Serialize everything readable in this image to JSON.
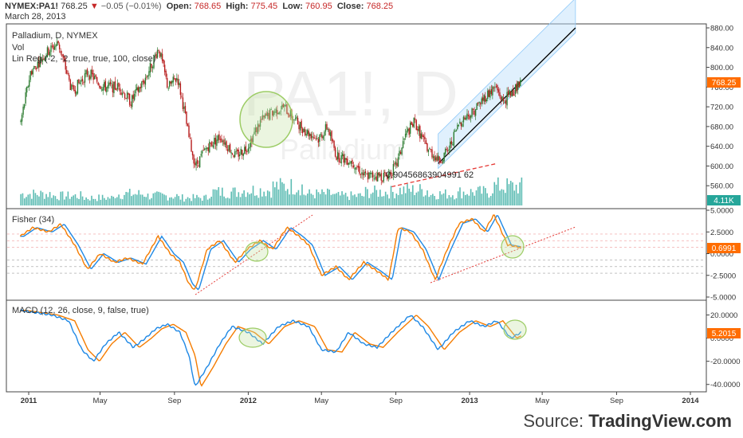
{
  "header": {
    "symbol": "NYMEX:PA1!",
    "last": "768.25",
    "change": "−0.05 (−0.01%)",
    "open_label": "Open:",
    "open": "768.65",
    "high_label": "High:",
    "high": "775.45",
    "low_label": "Low:",
    "low": "760.95",
    "close_label": "Close:",
    "close": "768.25",
    "date": "March 28, 2013"
  },
  "main_pane": {
    "title": "Palladium, D, NYMEX",
    "vol_label": "Vol",
    "linreg_label": "Lin Reg (-2, -2, true, true, 100, close)",
    "watermark_symbol": "PA1!, D",
    "watermark_name": "Palladium",
    "annotation": "0.90456863904991 62",
    "last_price_badge": "768.25",
    "volume_badge": "4.11K"
  },
  "fisher_pane": {
    "title": "Fisher (34)",
    "value_badge": "0.6991"
  },
  "macd_pane": {
    "title": "MACD (12, 26, close, 9, false, true)",
    "value_badge": "5.2015"
  },
  "source": {
    "prefix": "Source:",
    "brand": "TradingView.com"
  },
  "colors": {
    "up": "#2e7d32",
    "down": "#b71c1c",
    "volume": "#26a69a",
    "fisher": "#f57c00",
    "fisher_signal": "#1e88e5",
    "macd": "#1e88e5",
    "macd_signal": "#f57c00",
    "trendline_red": "#e53935",
    "channel": "#bbdefb",
    "badge": "#ff6d00"
  },
  "chart_data": [
    {
      "type": "candlestick",
      "title": "Palladium, D, NYMEX",
      "ylim": [
        520,
        880
      ],
      "y_ticks": [
        "560.00",
        "600.00",
        "640.00",
        "680.00",
        "720.00",
        "760.00",
        "800.00",
        "840.00",
        "880.00"
      ],
      "x_ticks": [
        "2011",
        "May",
        "Sep",
        "2012",
        "May",
        "Sep",
        "2013",
        "May",
        "Sep",
        "2014"
      ],
      "x_dates": [
        "2011-01-03",
        "2011-05-01",
        "2011-09-01",
        "2012-01-01",
        "2012-05-01",
        "2012-09-01",
        "2013-01-01",
        "2013-05-01",
        "2013-09-01",
        "2014-01-01"
      ],
      "price_path": [
        [
          "2010-12-20",
          690
        ],
        [
          "2011-01-05",
          790
        ],
        [
          "2011-02-01",
          830
        ],
        [
          "2011-02-20",
          850
        ],
        [
          "2011-03-15",
          750
        ],
        [
          "2011-04-10",
          790
        ],
        [
          "2011-05-05",
          760
        ],
        [
          "2011-06-01",
          760
        ],
        [
          "2011-06-20",
          730
        ],
        [
          "2011-07-15",
          780
        ],
        [
          "2011-08-05",
          840
        ],
        [
          "2011-08-20",
          760
        ],
        [
          "2011-09-05",
          780
        ],
        [
          "2011-09-15",
          720
        ],
        [
          "2011-09-25",
          650
        ],
        [
          "2011-10-05",
          600
        ],
        [
          "2011-10-25",
          640
        ],
        [
          "2011-11-15",
          660
        ],
        [
          "2011-12-10",
          620
        ],
        [
          "2011-12-30",
          640
        ],
        [
          "2012-01-20",
          690
        ],
        [
          "2012-02-10",
          710
        ],
        [
          "2012-02-28",
          720
        ],
        [
          "2012-03-20",
          690
        ],
        [
          "2012-04-05",
          670
        ],
        [
          "2012-04-25",
          655
        ],
        [
          "2012-05-10",
          680
        ],
        [
          "2012-05-25",
          620
        ],
        [
          "2012-06-20",
          610
        ],
        [
          "2012-07-10",
          580
        ],
        [
          "2012-07-30",
          580
        ],
        [
          "2012-08-15",
          580
        ],
        [
          "2012-09-01",
          600
        ],
        [
          "2012-09-15",
          660
        ],
        [
          "2012-10-01",
          690
        ],
        [
          "2012-10-20",
          640
        ],
        [
          "2012-11-10",
          610
        ],
        [
          "2012-11-25",
          630
        ],
        [
          "2012-12-15",
          690
        ],
        [
          "2013-01-05",
          710
        ],
        [
          "2013-01-25",
          740
        ],
        [
          "2013-02-12",
          760
        ],
        [
          "2013-02-25",
          730
        ],
        [
          "2013-03-10",
          750
        ],
        [
          "2013-03-28",
          768.25
        ]
      ],
      "volume": {
        "last_label": "4.11K",
        "approx_share_of_pane": [
          0.3,
          0.25,
          0.2,
          0.3,
          0.25,
          0.2,
          0.35,
          0.4,
          0.5,
          0.3,
          0.25,
          0.35,
          0.4,
          0.3,
          0.35,
          0.5
        ]
      },
      "lin_reg_channel": {
        "start": [
          "2012-11-10",
          605
        ],
        "end": [
          "2013-06-25",
          880
        ],
        "upper_offset": 60,
        "lower_offset": 10
      },
      "annotation_line": {
        "start": [
          "2012-08-25",
          558
        ],
        "end": [
          "2013-02-15",
          605
        ],
        "label": "0.90456863904991 62"
      },
      "last_price": 768.25
    },
    {
      "type": "line",
      "title": "Fisher (34)",
      "ylim": [
        -5.0,
        5.0
      ],
      "y_ticks": [
        "5.0000",
        "2.5000",
        "0.0000",
        "-2.5000",
        "-5.0000"
      ],
      "last_value": 0.6991,
      "series_points": [
        [
          "2010-12-20",
          2.0
        ],
        [
          "2011-01-10",
          3.0
        ],
        [
          "2011-02-05",
          2.5
        ],
        [
          "2011-02-25",
          3.4
        ],
        [
          "2011-03-20",
          1.0
        ],
        [
          "2011-04-10",
          -1.8
        ],
        [
          "2011-05-01",
          0.0
        ],
        [
          "2011-05-25",
          -1.0
        ],
        [
          "2011-06-15",
          -0.5
        ],
        [
          "2011-07-10",
          -1.2
        ],
        [
          "2011-08-05",
          2.0
        ],
        [
          "2011-08-25",
          0.0
        ],
        [
          "2011-09-10",
          -1.0
        ],
        [
          "2011-09-25",
          -3.5
        ],
        [
          "2011-10-05",
          -4.2
        ],
        [
          "2011-10-25",
          0.5
        ],
        [
          "2011-11-15",
          1.5
        ],
        [
          "2011-12-10",
          -1.0
        ],
        [
          "2011-12-30",
          0.5
        ],
        [
          "2012-01-20",
          1.5
        ],
        [
          "2012-02-10",
          0.5
        ],
        [
          "2012-03-05",
          3.0
        ],
        [
          "2012-03-25",
          2.0
        ],
        [
          "2012-04-10",
          1.0
        ],
        [
          "2012-05-01",
          -2.5
        ],
        [
          "2012-05-25",
          -1.5
        ],
        [
          "2012-06-15",
          -3.0
        ],
        [
          "2012-07-10",
          -1.0
        ],
        [
          "2012-08-01",
          -2.0
        ],
        [
          "2012-08-20",
          -3.0
        ],
        [
          "2012-09-05",
          3.0
        ],
        [
          "2012-09-25",
          2.5
        ],
        [
          "2012-10-15",
          0.5
        ],
        [
          "2012-11-05",
          -3.0
        ],
        [
          "2012-11-25",
          0.5
        ],
        [
          "2012-12-15",
          3.5
        ],
        [
          "2013-01-05",
          4.0
        ],
        [
          "2013-01-25",
          2.5
        ],
        [
          "2013-02-10",
          4.5
        ],
        [
          "2013-03-05",
          1.0
        ],
        [
          "2013-03-28",
          0.6991
        ]
      ],
      "signal_lag_days": 6
    },
    {
      "type": "line",
      "title": "MACD (12, 26, close, 9, false, true)",
      "ylim": [
        -45,
        30
      ],
      "y_ticks": [
        "20.0000",
        "0.0000",
        "-20.0000",
        "-40.0000"
      ],
      "last_value": 5.2015,
      "series_points": [
        [
          "2010-12-20",
          24
        ],
        [
          "2011-01-15",
          22
        ],
        [
          "2011-02-10",
          20
        ],
        [
          "2011-03-10",
          15
        ],
        [
          "2011-04-01",
          -10
        ],
        [
          "2011-04-20",
          -20
        ],
        [
          "2011-05-10",
          -5
        ],
        [
          "2011-06-01",
          5
        ],
        [
          "2011-06-25",
          -8
        ],
        [
          "2011-07-15",
          0
        ],
        [
          "2011-08-01",
          8
        ],
        [
          "2011-08-20",
          12
        ],
        [
          "2011-09-10",
          5
        ],
        [
          "2011-09-25",
          -15
        ],
        [
          "2011-10-05",
          -42
        ],
        [
          "2011-10-25",
          -25
        ],
        [
          "2011-11-15",
          -5
        ],
        [
          "2011-12-05",
          10
        ],
        [
          "2012-01-01",
          5
        ],
        [
          "2012-01-25",
          -5
        ],
        [
          "2012-02-20",
          10
        ],
        [
          "2012-03-15",
          15
        ],
        [
          "2012-04-10",
          10
        ],
        [
          "2012-05-01",
          -10
        ],
        [
          "2012-05-25",
          -12
        ],
        [
          "2012-06-15",
          5
        ],
        [
          "2012-07-10",
          -5
        ],
        [
          "2012-08-01",
          -8
        ],
        [
          "2012-08-25",
          5
        ],
        [
          "2012-09-25",
          20
        ],
        [
          "2012-10-15",
          10
        ],
        [
          "2012-11-10",
          -10
        ],
        [
          "2012-12-05",
          5
        ],
        [
          "2013-01-01",
          15
        ],
        [
          "2013-01-25",
          10
        ],
        [
          "2013-02-15",
          15
        ],
        [
          "2013-03-10",
          0
        ],
        [
          "2013-03-28",
          5.2
        ]
      ],
      "signal_lag_days": 10
    }
  ]
}
